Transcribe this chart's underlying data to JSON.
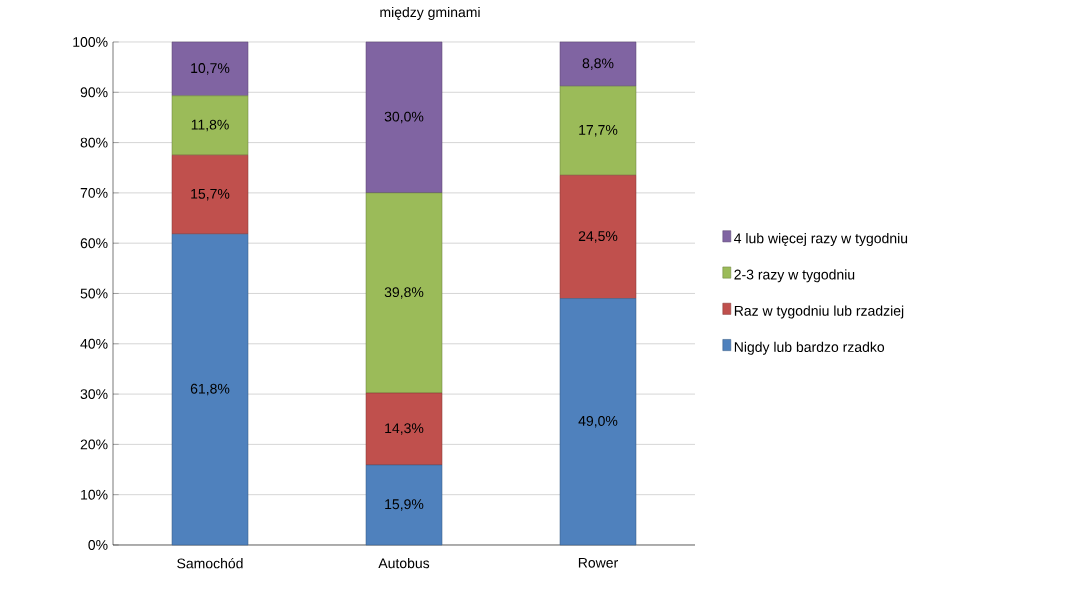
{
  "chart_data": {
    "type": "bar",
    "stacked": true,
    "title": "między gminami",
    "categories": [
      "Samochód",
      "Autobus",
      "Rower"
    ],
    "series": [
      {
        "name": "Nigdy lub bardzo rzadko",
        "color": "#4f81bd",
        "values": [
          61.8,
          15.9,
          49.0
        ],
        "value_labels": [
          "61,8%",
          "15,9%",
          "49,0%"
        ]
      },
      {
        "name": "Raz w tygodniu lub rzadziej",
        "color": "#c0504d",
        "values": [
          15.7,
          14.3,
          24.5
        ],
        "value_labels": [
          "15,7%",
          "14,3%",
          "24,5%"
        ]
      },
      {
        "name": "2-3 razy w tygodniu",
        "color": "#9bbb59",
        "values": [
          11.8,
          39.8,
          17.7
        ],
        "value_labels": [
          "11,8%",
          "39,8%",
          "17,7%"
        ]
      },
      {
        "name": "4 lub więcej razy w tygodniu",
        "color": "#8064a2",
        "values": [
          10.7,
          30.0,
          8.8
        ],
        "value_labels": [
          "10,7%",
          "30,0%",
          "8,8%"
        ]
      }
    ],
    "ylim": [
      0,
      100
    ],
    "yticks": [
      {
        "value": 0,
        "label": "0%"
      },
      {
        "value": 10,
        "label": "10%"
      },
      {
        "value": 20,
        "label": "20%"
      },
      {
        "value": 30,
        "label": "30%"
      },
      {
        "value": 40,
        "label": "40%"
      },
      {
        "value": 50,
        "label": "50%"
      },
      {
        "value": 60,
        "label": "60%"
      },
      {
        "value": 70,
        "label": "70%"
      },
      {
        "value": 80,
        "label": "80%"
      },
      {
        "value": 90,
        "label": "90%"
      },
      {
        "value": 100,
        "label": "100%"
      }
    ],
    "grid": "y",
    "legend": "right"
  }
}
